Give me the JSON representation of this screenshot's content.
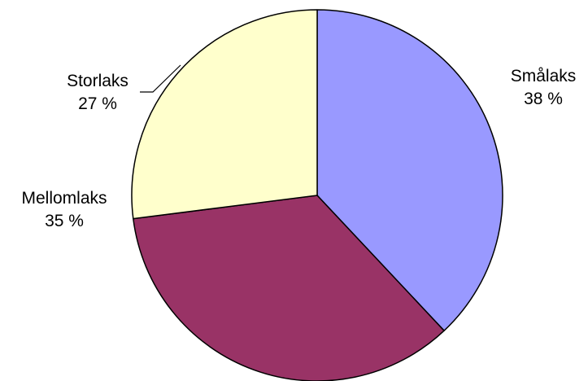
{
  "chart_data": {
    "type": "pie",
    "title": "",
    "start_angle_deg": 0,
    "direction": "clockwise",
    "legend": "none",
    "slices": [
      {
        "name": "Smålaks",
        "value": 38,
        "value_label": "38 %",
        "color": "#9999ff"
      },
      {
        "name": "Mellomlaks",
        "value": 35,
        "value_label": "35 %",
        "color": "#993366"
      },
      {
        "name": "Storlaks",
        "value": 27,
        "value_label": "27 %",
        "color": "#ffffcc"
      }
    ]
  }
}
